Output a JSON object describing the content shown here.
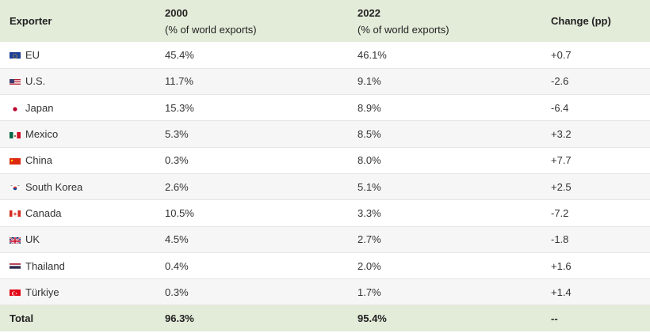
{
  "table": {
    "headers": {
      "exporter": "Exporter",
      "y2000": "2000",
      "y2000_sub": "(% of world exports)",
      "y2022": "2022",
      "y2022_sub": "(% of world exports)",
      "change": "Change (pp)"
    },
    "rows": [
      {
        "flag": "eu-flag-icon",
        "exporter": "EU",
        "y2000": "45.4%",
        "y2022": "46.1%",
        "change": "+0.7"
      },
      {
        "flag": "us-flag-icon",
        "exporter": "U.S.",
        "y2000": "11.7%",
        "y2022": "9.1%",
        "change": "-2.6"
      },
      {
        "flag": "japan-flag-icon",
        "exporter": "Japan",
        "y2000": "15.3%",
        "y2022": "8.9%",
        "change": "-6.4"
      },
      {
        "flag": "mexico-flag-icon",
        "exporter": "Mexico",
        "y2000": "5.3%",
        "y2022": "8.5%",
        "change": "+3.2"
      },
      {
        "flag": "china-flag-icon",
        "exporter": "China",
        "y2000": "0.3%",
        "y2022": "8.0%",
        "change": "+7.7"
      },
      {
        "flag": "south-korea-flag-icon",
        "exporter": "South Korea",
        "y2000": "2.6%",
        "y2022": "5.1%",
        "change": "+2.5"
      },
      {
        "flag": "canada-flag-icon",
        "exporter": "Canada",
        "y2000": "10.5%",
        "y2022": "3.3%",
        "change": "-7.2"
      },
      {
        "flag": "uk-flag-icon",
        "exporter": "UK",
        "y2000": "4.5%",
        "y2022": "2.7%",
        "change": "-1.8"
      },
      {
        "flag": "thailand-flag-icon",
        "exporter": "Thailand",
        "y2000": "0.4%",
        "y2022": "2.0%",
        "change": "+1.6"
      },
      {
        "flag": "turkiye-flag-icon",
        "exporter": "Türkiye",
        "y2000": "0.3%",
        "y2022": "1.7%",
        "change": "+1.4"
      }
    ],
    "total": {
      "label": "Total",
      "y2000": "96.3%",
      "y2022": "95.4%",
      "change": "--"
    }
  },
  "colors": {
    "header_bg": "#e3ecd9",
    "row_alt_bg": "#f6f6f6",
    "row_border": "#e6e6e6"
  }
}
